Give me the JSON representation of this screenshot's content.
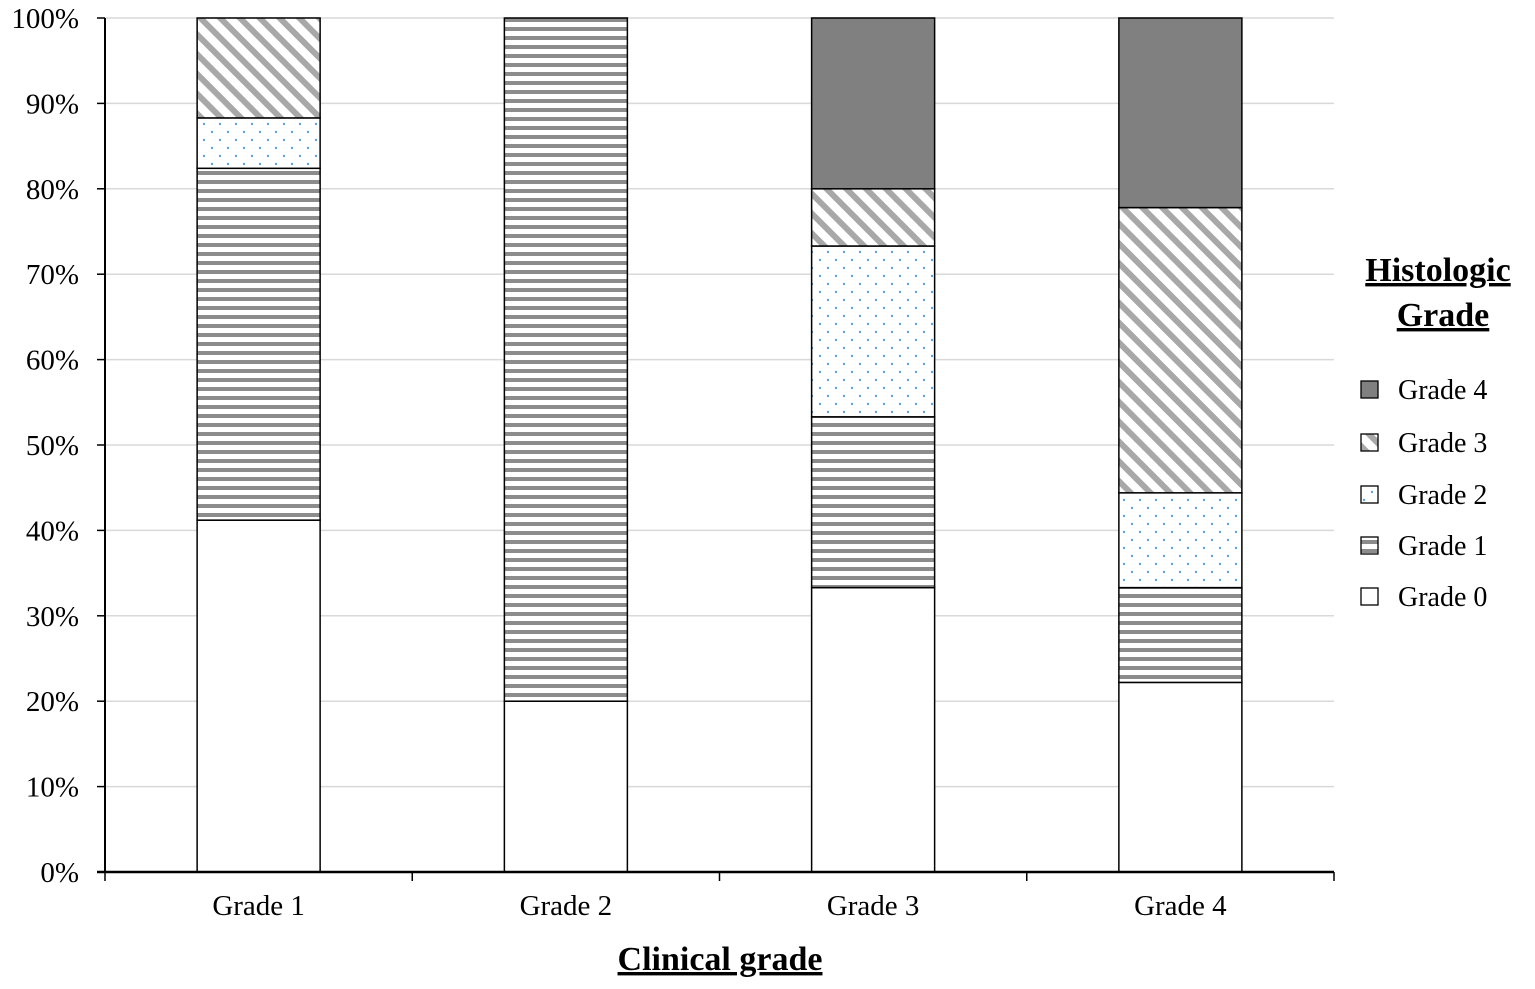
{
  "chart_data": {
    "type": "bar",
    "stacked": "percent",
    "title": "",
    "xlabel": "Clinical grade",
    "ylabel": "",
    "ylim": [
      0,
      100
    ],
    "yticks": [
      "0%",
      "10%",
      "20%",
      "30%",
      "40%",
      "50%",
      "60%",
      "70%",
      "80%",
      "90%",
      "100%"
    ],
    "grid": true,
    "categories": [
      "Grade 1",
      "Grade 2",
      "Grade 3",
      "Grade 4"
    ],
    "series": [
      {
        "name": "Grade 0",
        "values": [
          41.2,
          20.0,
          33.3,
          22.2
        ],
        "pattern": "solid-white"
      },
      {
        "name": "Grade 1",
        "values": [
          41.2,
          80.0,
          20.0,
          11.1
        ],
        "pattern": "horizontal-stripes"
      },
      {
        "name": "Grade 2",
        "values": [
          5.9,
          0,
          20.0,
          11.1
        ],
        "pattern": "dots"
      },
      {
        "name": "Grade 3",
        "values": [
          11.7,
          0,
          6.7,
          33.4
        ],
        "pattern": "diagonal-stripes"
      },
      {
        "name": "Grade 4",
        "values": [
          0,
          0,
          20.0,
          22.2
        ],
        "pattern": "solid-gray"
      }
    ],
    "legend": {
      "title_line1": "Histologic",
      "title_line2": "Grade",
      "position": "right",
      "order": [
        "Grade 4",
        "Grade 3",
        "Grade 2",
        "Grade 1",
        "Grade 0"
      ]
    },
    "colors": {
      "gray_fill": "#808080",
      "stripe": "#8c8c8c",
      "hatch": "#a8a8a8",
      "dot": "#5aa3d8",
      "grid": "#d9d9d9",
      "axis": "#000000"
    }
  }
}
